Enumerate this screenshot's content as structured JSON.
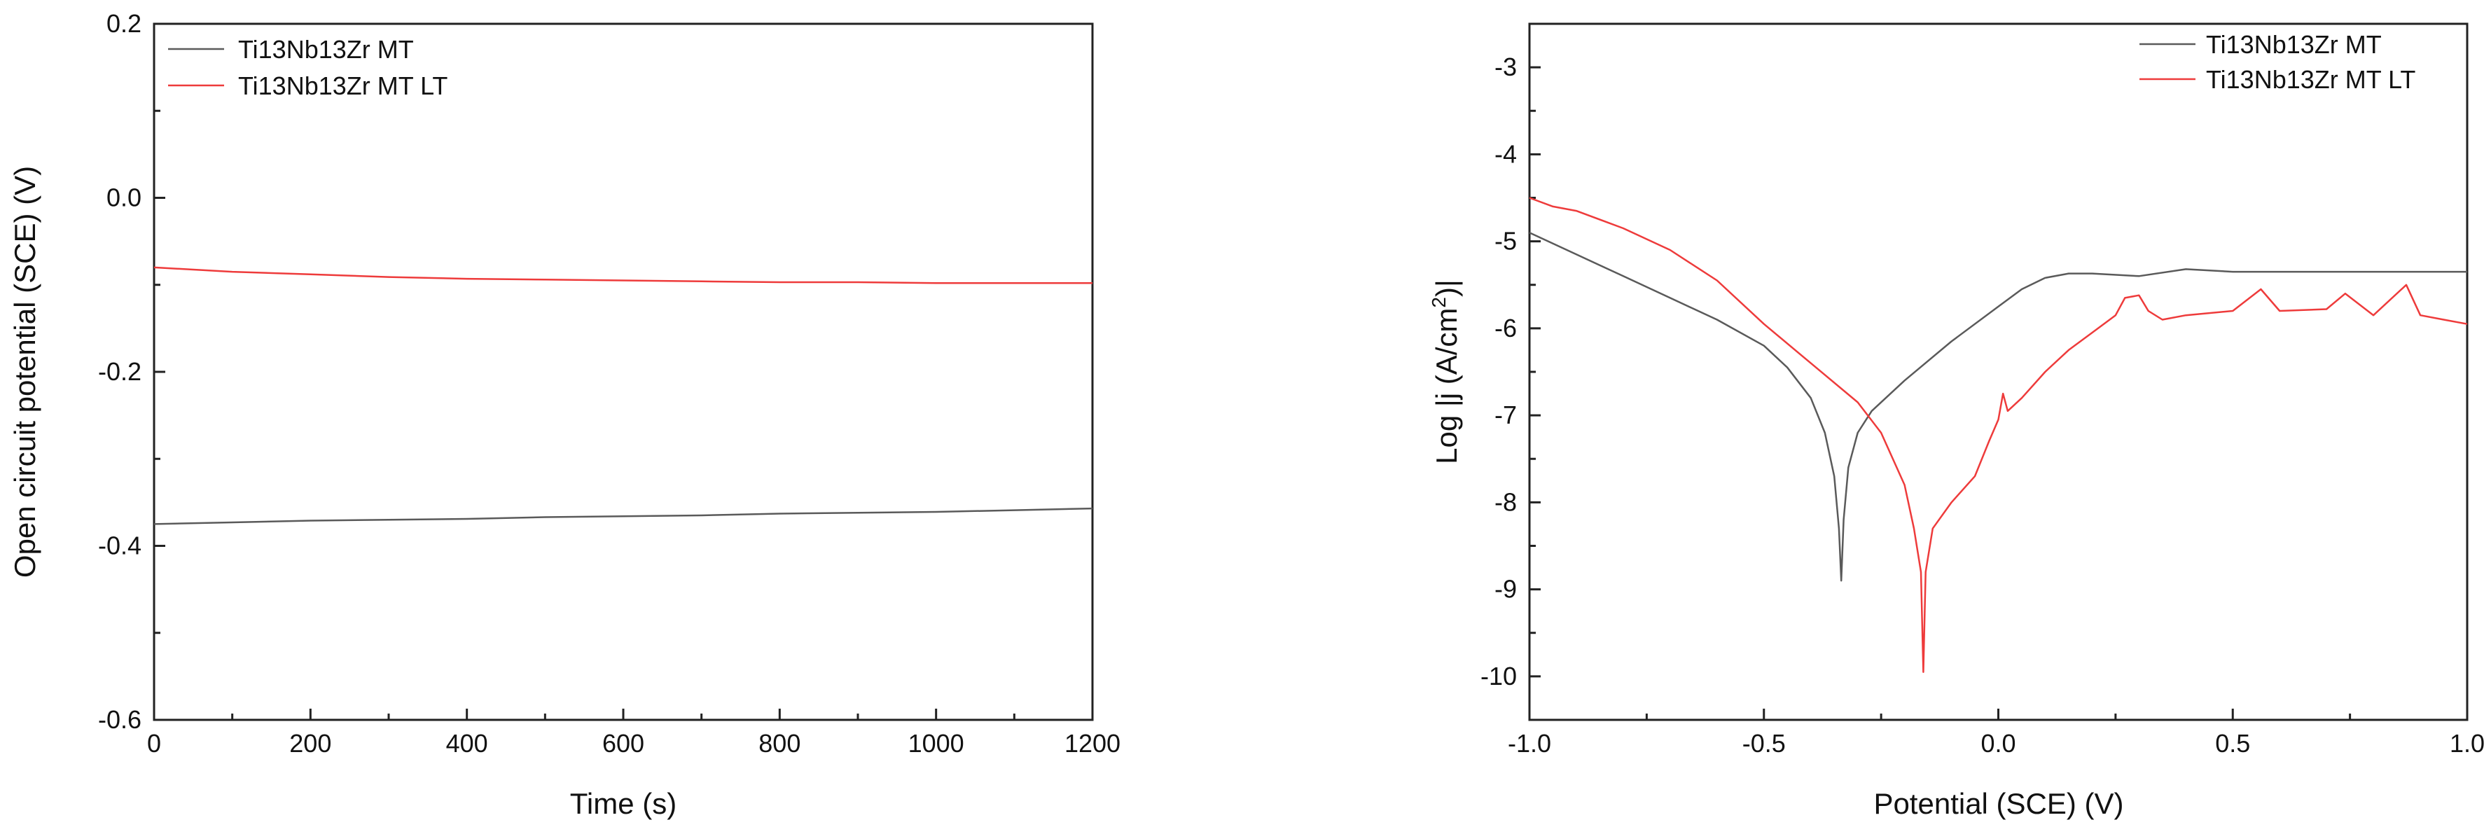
{
  "chart_data": [
    {
      "type": "line",
      "xlabel": "Time (s)",
      "ylabel": "Open circuit potential (SCE) (V)",
      "xlim": [
        0,
        1200
      ],
      "ylim": [
        -0.6,
        0.2
      ],
      "xticks": [
        0,
        200,
        400,
        600,
        800,
        1000,
        1200
      ],
      "yticks": [
        -0.6,
        -0.4,
        -0.2,
        0.0,
        0.2
      ],
      "ytick_labels": [
        "-0.6",
        "-0.4",
        "-0.2",
        "0.0",
        "0.2"
      ],
      "grid": false,
      "legend_position": "top-left",
      "series": [
        {
          "name": "Ti13Nb13Zr MT",
          "color": "#5a5a5a",
          "x": [
            0,
            100,
            200,
            300,
            400,
            500,
            600,
            700,
            800,
            900,
            1000,
            1100,
            1200
          ],
          "y": [
            -0.375,
            -0.373,
            -0.371,
            -0.37,
            -0.369,
            -0.367,
            -0.366,
            -0.365,
            -0.363,
            -0.362,
            -0.361,
            -0.359,
            -0.357
          ]
        },
        {
          "name": "Ti13Nb13Zr MT LT",
          "color": "#ee3b3b",
          "x": [
            0,
            100,
            200,
            300,
            400,
            500,
            600,
            700,
            800,
            900,
            1000,
            1100,
            1200
          ],
          "y": [
            -0.08,
            -0.085,
            -0.088,
            -0.091,
            -0.093,
            -0.094,
            -0.095,
            -0.096,
            -0.097,
            -0.097,
            -0.098,
            -0.098,
            -0.098
          ]
        }
      ]
    },
    {
      "type": "line",
      "xlabel": "Potential (SCE) (V)",
      "ylabel_main": "Log |j (A/cm",
      "ylabel_sup": "2",
      "ylabel_end": ")|",
      "xlim": [
        -1.0,
        1.0
      ],
      "ylim": [
        -10.5,
        -2.5
      ],
      "xticks": [
        -1.0,
        -0.5,
        0.0,
        0.5,
        1.0
      ],
      "xtick_labels": [
        "-1.0",
        "-0.5",
        "0.0",
        "0.5",
        "1.0"
      ],
      "yticks": [
        -10,
        -9,
        -8,
        -7,
        -6,
        -5,
        -4,
        -3
      ],
      "grid": false,
      "legend_position": "top-right",
      "series": [
        {
          "name": "Ti13Nb13Zr MT",
          "color": "#5a5a5a",
          "x": [
            -1.0,
            -0.9,
            -0.8,
            -0.7,
            -0.6,
            -0.5,
            -0.45,
            -0.4,
            -0.37,
            -0.35,
            -0.34,
            -0.335,
            -0.33,
            -0.32,
            -0.3,
            -0.27,
            -0.2,
            -0.1,
            0.0,
            0.05,
            0.1,
            0.15,
            0.2,
            0.3,
            0.4,
            0.5,
            0.7,
            0.9,
            1.0
          ],
          "y": [
            -4.9,
            -5.15,
            -5.4,
            -5.65,
            -5.9,
            -6.2,
            -6.45,
            -6.8,
            -7.2,
            -7.7,
            -8.3,
            -8.9,
            -8.2,
            -7.6,
            -7.2,
            -6.95,
            -6.6,
            -6.15,
            -5.75,
            -5.55,
            -5.42,
            -5.37,
            -5.37,
            -5.4,
            -5.32,
            -5.35,
            -5.35,
            -5.35,
            -5.35
          ]
        },
        {
          "name": "Ti13Nb13Zr MT LT",
          "color": "#ee3b3b",
          "x": [
            -1.0,
            -0.95,
            -0.9,
            -0.8,
            -0.7,
            -0.6,
            -0.5,
            -0.4,
            -0.3,
            -0.25,
            -0.2,
            -0.18,
            -0.165,
            -0.16,
            -0.155,
            -0.14,
            -0.1,
            -0.05,
            -0.02,
            0.0,
            0.01,
            0.02,
            0.05,
            0.1,
            0.15,
            0.2,
            0.25,
            0.27,
            0.3,
            0.32,
            0.35,
            0.4,
            0.5,
            0.56,
            0.6,
            0.7,
            0.74,
            0.8,
            0.87,
            0.9,
            0.95,
            1.0
          ],
          "y": [
            -4.5,
            -4.6,
            -4.65,
            -4.85,
            -5.1,
            -5.45,
            -5.95,
            -6.4,
            -6.85,
            -7.2,
            -7.8,
            -8.3,
            -8.8,
            -9.95,
            -8.8,
            -8.3,
            -8.0,
            -7.7,
            -7.3,
            -7.05,
            -6.75,
            -6.95,
            -6.8,
            -6.5,
            -6.25,
            -6.05,
            -5.85,
            -5.65,
            -5.62,
            -5.8,
            -5.9,
            -5.85,
            -5.8,
            -5.55,
            -5.8,
            -5.78,
            -5.6,
            -5.85,
            -5.5,
            -5.85,
            -5.9,
            -5.95
          ]
        }
      ]
    }
  ]
}
